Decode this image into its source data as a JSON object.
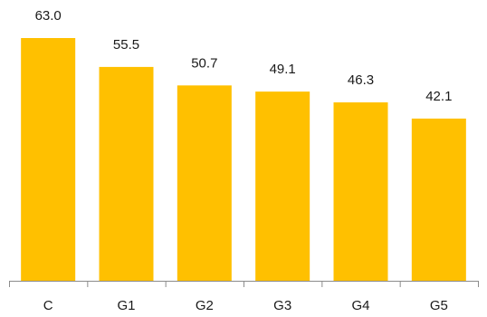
{
  "chart_data": {
    "type": "bar",
    "categories": [
      "C",
      "G1",
      "G2",
      "G3",
      "G4",
      "G5"
    ],
    "values": [
      63.0,
      55.5,
      50.7,
      49.1,
      46.3,
      42.1
    ],
    "value_labels": [
      "63.0",
      "55.5",
      "50.7",
      "49.1",
      "46.3",
      "42.1"
    ],
    "title": "",
    "xlabel": "",
    "ylabel": "",
    "ylim": [
      0,
      63
    ],
    "grid": false,
    "legend": "none",
    "bar_color": "#FFC000"
  }
}
